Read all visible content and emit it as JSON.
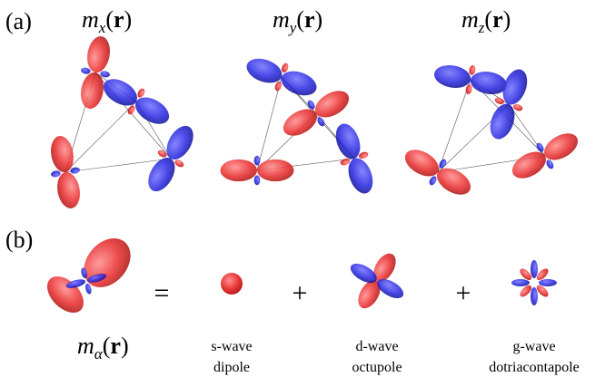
{
  "panel_a": {
    "label": "(a)",
    "titles": [
      {
        "symbol": "m",
        "subscript": "x",
        "open": "(",
        "vector": "r",
        "close": ")"
      },
      {
        "symbol": "m",
        "subscript": "y",
        "open": "(",
        "vector": "r",
        "close": ")"
      },
      {
        "symbol": "m",
        "subscript": "z",
        "open": "(",
        "vector": "r",
        "close": ")"
      }
    ]
  },
  "panel_b": {
    "label": "(b)",
    "title": {
      "symbol": "m",
      "subscript": "α",
      "open": "(",
      "vector": "r",
      "close": ")"
    },
    "operators": [
      "=",
      "+",
      "+"
    ],
    "components": [
      {
        "wave": "s-wave",
        "multipole": "dipole"
      },
      {
        "wave": "d-wave",
        "multipole": "octupole"
      },
      {
        "wave": "g-wave",
        "multipole": "dotriacontapole"
      }
    ]
  }
}
